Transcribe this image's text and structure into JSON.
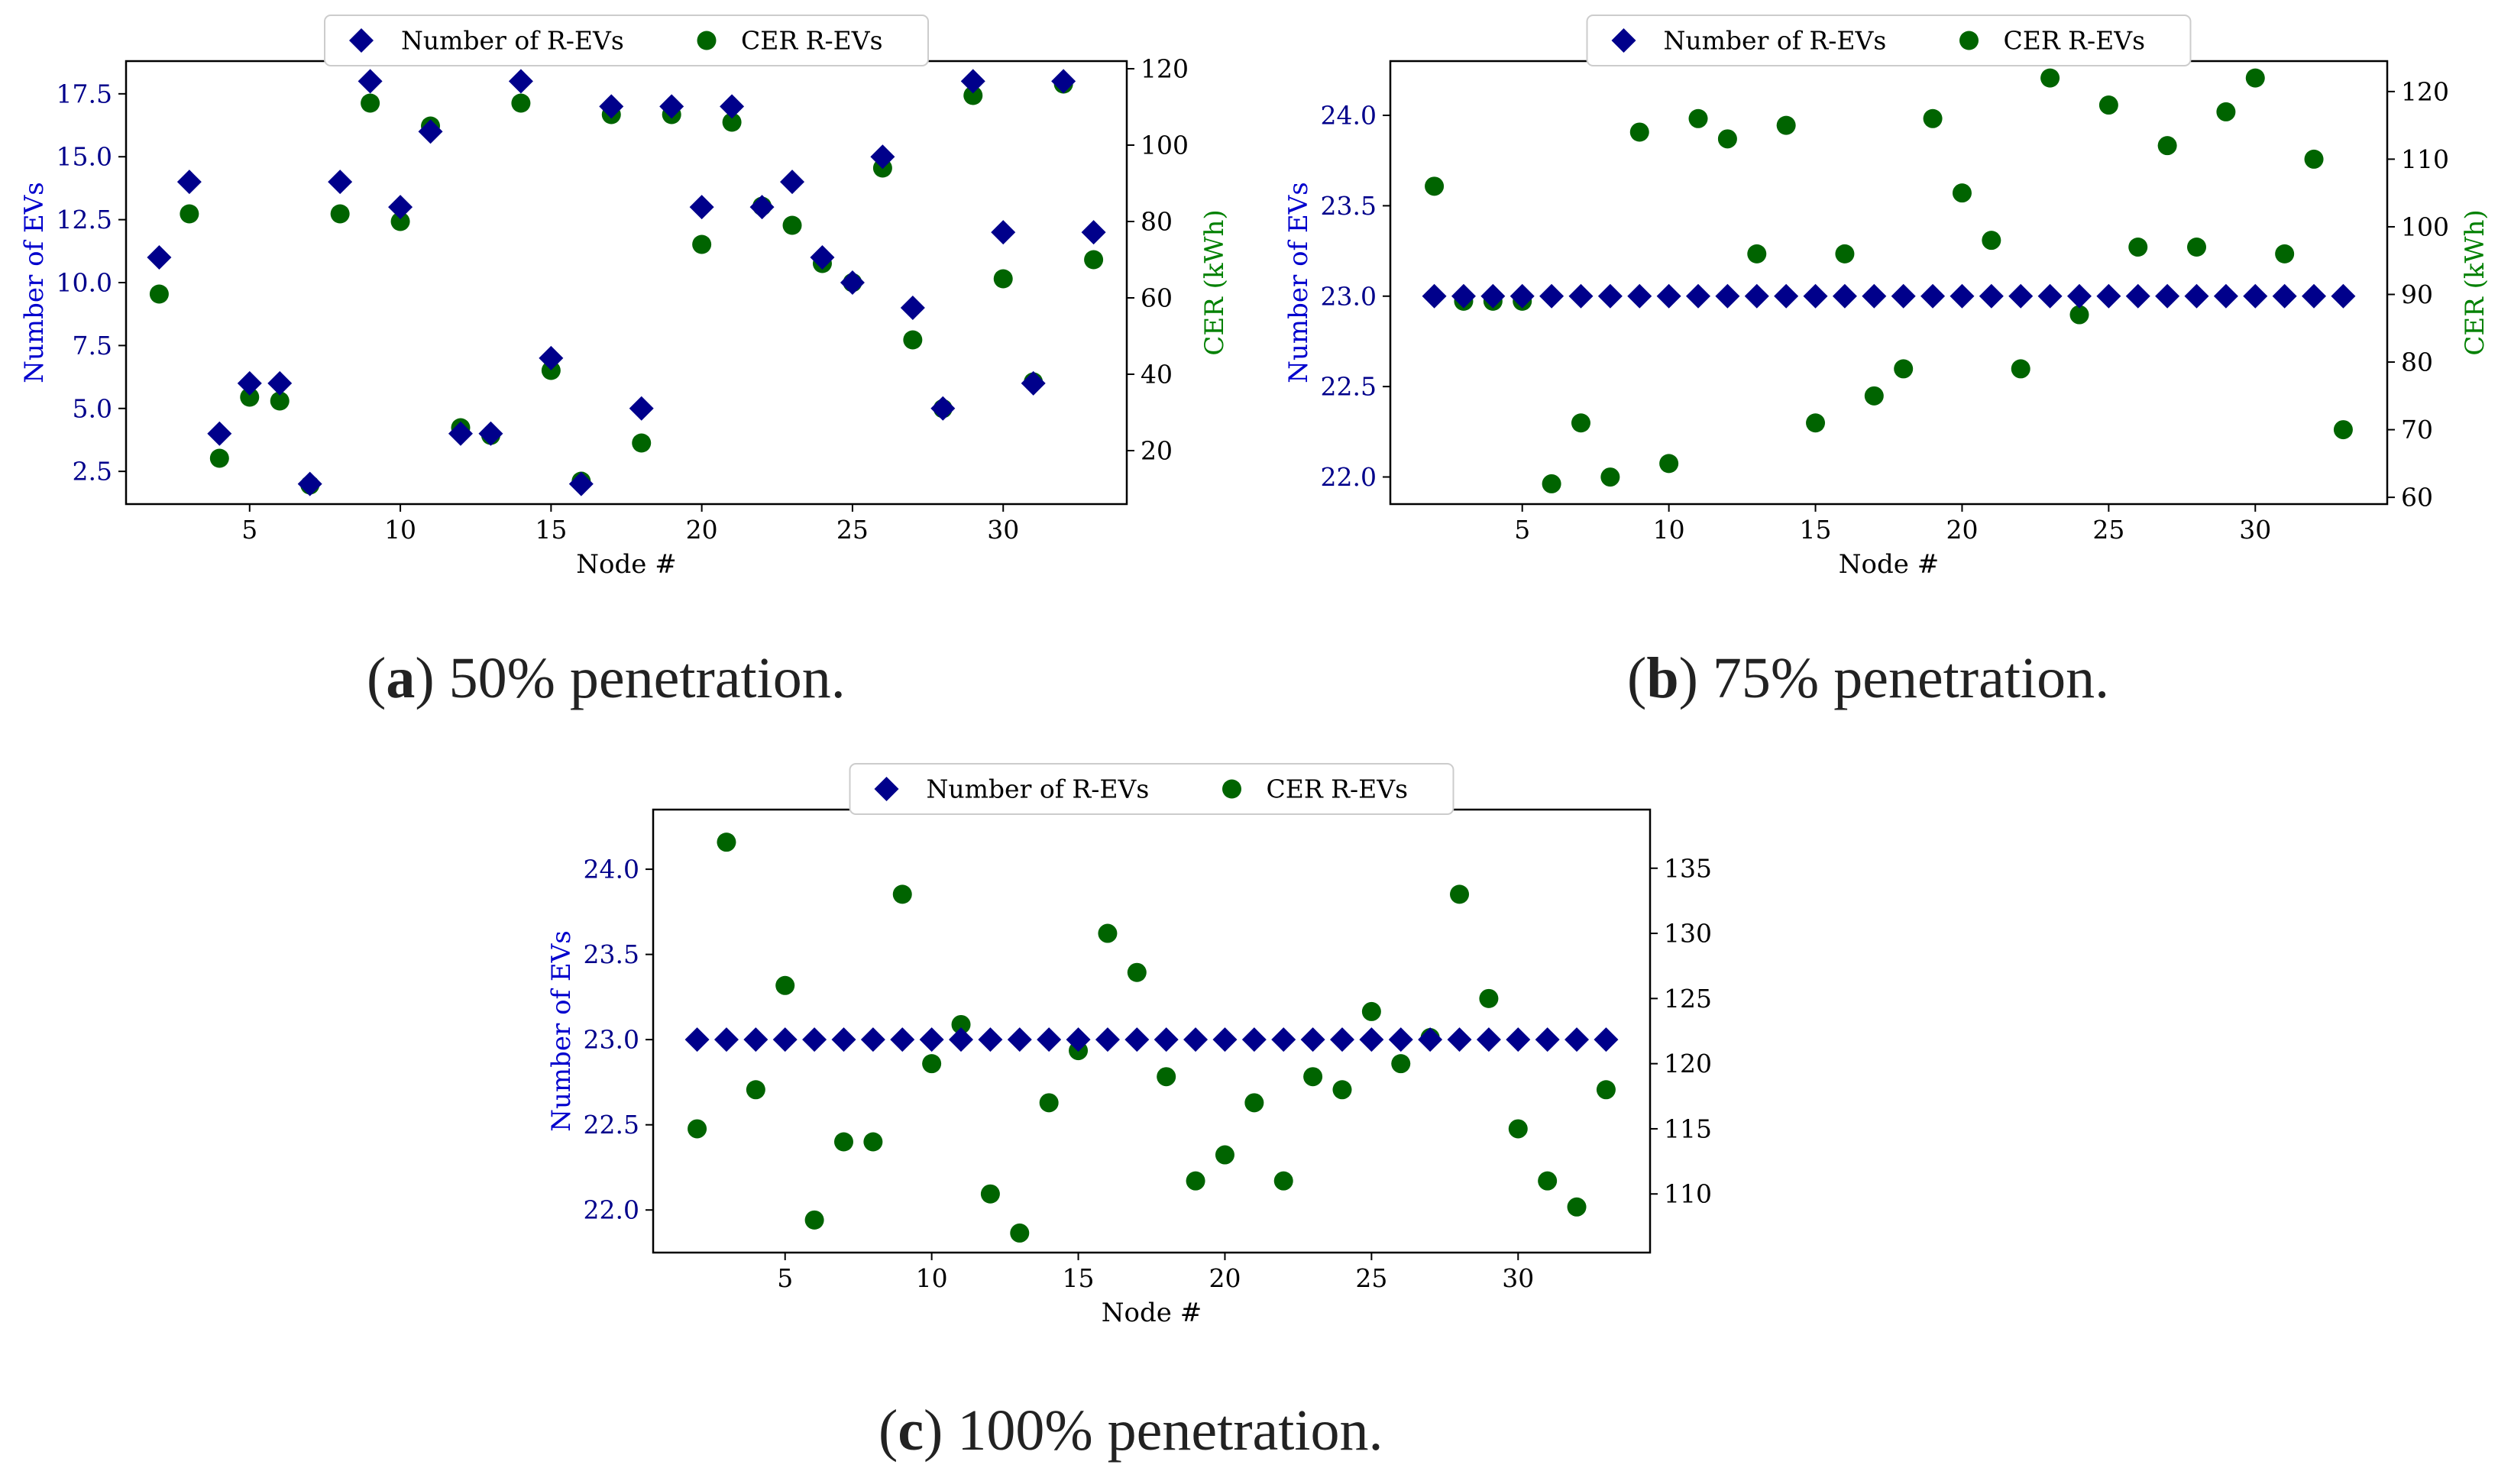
{
  "figure": {
    "captions": [
      {
        "letter": "a",
        "text": "50% penetration."
      },
      {
        "letter": "b",
        "text": "75% penetration."
      },
      {
        "letter": "c",
        "text": "100% penetration."
      }
    ]
  },
  "colors": {
    "evs_series": "#00008b",
    "cer_series": "#006400",
    "left_axis_label": "#0000cd",
    "right_axis_label": "#008000",
    "axis": "#000000"
  },
  "chart_data": [
    {
      "panel": "a",
      "type": "scatter",
      "xlabel": "Node #",
      "ylabel_left": "Number of EVs",
      "ylabel_right": "CER (kWh)",
      "legend": {
        "placement": "top-center",
        "entries": [
          "Number of R-EVs",
          "CER R-EVs"
        ]
      },
      "x": [
        2,
        3,
        4,
        5,
        6,
        7,
        8,
        9,
        10,
        11,
        12,
        13,
        14,
        15,
        16,
        17,
        18,
        19,
        20,
        21,
        22,
        23,
        24,
        25,
        26,
        27,
        28,
        29,
        30,
        31,
        32,
        33
      ],
      "series": [
        {
          "name": "Number of R-EVs",
          "axis": "left",
          "marker": "diamond",
          "values": [
            11,
            14,
            4,
            6,
            6,
            2,
            14,
            18,
            13,
            16,
            4,
            4,
            18,
            7,
            2,
            17,
            5,
            17,
            13,
            17,
            13,
            14,
            11,
            10,
            15,
            9,
            5,
            18,
            12,
            6,
            18,
            12
          ]
        },
        {
          "name": "CER R-EVs",
          "axis": "right",
          "marker": "circle",
          "values": [
            61,
            82,
            18,
            34,
            33,
            11,
            82,
            111,
            80,
            105,
            26,
            24,
            111,
            41,
            12,
            108,
            22,
            108,
            74,
            106,
            84,
            79,
            69,
            64,
            94,
            49,
            31,
            113,
            65,
            38,
            116,
            70
          ]
        }
      ],
      "x_ticks": [
        5,
        10,
        15,
        20,
        25,
        30
      ],
      "xlim": [
        0.9,
        34.1
      ],
      "y_left_ticks": [
        "2.5",
        "5.0",
        "7.5",
        "10.0",
        "12.5",
        "15.0",
        "17.5"
      ],
      "ylim_left": [
        1.2,
        18.8
      ],
      "y_right_ticks": [
        "20",
        "40",
        "60",
        "80",
        "100",
        "120"
      ],
      "ylim_right": [
        6,
        122
      ]
    },
    {
      "panel": "b",
      "type": "scatter",
      "xlabel": "Node #",
      "ylabel_left": "Number of EVs",
      "ylabel_right": "CER (kWh)",
      "legend": {
        "placement": "top-center",
        "entries": [
          "Number of R-EVs",
          "CER R-EVs"
        ]
      },
      "x": [
        2,
        3,
        4,
        5,
        6,
        7,
        8,
        9,
        10,
        11,
        12,
        13,
        14,
        15,
        16,
        17,
        18,
        19,
        20,
        21,
        22,
        23,
        24,
        25,
        26,
        27,
        28,
        29,
        30,
        31,
        32,
        33
      ],
      "series": [
        {
          "name": "Number of R-EVs",
          "axis": "left",
          "marker": "diamond",
          "values": [
            23,
            23,
            23,
            23,
            23,
            23,
            23,
            23,
            23,
            23,
            23,
            23,
            23,
            23,
            23,
            23,
            23,
            23,
            23,
            23,
            23,
            23,
            23,
            23,
            23,
            23,
            23,
            23,
            23,
            23,
            23,
            23
          ]
        },
        {
          "name": "CER R-EVs",
          "axis": "right",
          "marker": "circle",
          "values": [
            106,
            89,
            89,
            89,
            62,
            71,
            63,
            114,
            65,
            116,
            113,
            96,
            115,
            71,
            96,
            75,
            79,
            116,
            105,
            98,
            79,
            122,
            87,
            118,
            97,
            112,
            97,
            117,
            122,
            96,
            110,
            70
          ]
        }
      ],
      "x_ticks": [
        5,
        10,
        15,
        20,
        25,
        30
      ],
      "xlim": [
        0.5,
        34.5
      ],
      "y_left_ticks": [
        "22.0",
        "22.5",
        "23.0",
        "23.5",
        "24.0"
      ],
      "ylim_left": [
        21.85,
        24.3
      ],
      "y_right_ticks": [
        "60",
        "70",
        "80",
        "90",
        "100",
        "110",
        "120"
      ],
      "ylim_right": [
        59,
        124.5
      ]
    },
    {
      "panel": "c",
      "type": "scatter",
      "xlabel": "Node #",
      "ylabel_left": "Number of EVs",
      "ylabel_right": "",
      "legend": {
        "placement": "top-center",
        "entries": [
          "Number of R-EVs",
          "CER R-EVs"
        ]
      },
      "x": [
        2,
        3,
        4,
        5,
        6,
        7,
        8,
        9,
        10,
        11,
        12,
        13,
        14,
        15,
        16,
        17,
        18,
        19,
        20,
        21,
        22,
        23,
        24,
        25,
        26,
        27,
        28,
        29,
        30,
        31,
        32,
        33
      ],
      "series": [
        {
          "name": "Number of R-EVs",
          "axis": "left",
          "marker": "diamond",
          "values": [
            23,
            23,
            23,
            23,
            23,
            23,
            23,
            23,
            23,
            23,
            23,
            23,
            23,
            23,
            23,
            23,
            23,
            23,
            23,
            23,
            23,
            23,
            23,
            23,
            23,
            23,
            23,
            23,
            23,
            23,
            23,
            23
          ]
        },
        {
          "name": "CER R-EVs",
          "axis": "right",
          "marker": "circle",
          "values": [
            115,
            137,
            118,
            126,
            108,
            114,
            114,
            133,
            120,
            123,
            110,
            107,
            117,
            121,
            130,
            127,
            119,
            111,
            113,
            117,
            111,
            119,
            118,
            124,
            120,
            122,
            133,
            125,
            115,
            111,
            109,
            118
          ]
        }
      ],
      "x_ticks": [
        5,
        10,
        15,
        20,
        25,
        30
      ],
      "xlim": [
        0.5,
        34.5
      ],
      "y_left_ticks": [
        "22.0",
        "22.5",
        "23.0",
        "23.5",
        "24.0"
      ],
      "ylim_left": [
        21.75,
        24.35
      ],
      "y_right_ticks": [
        "110",
        "115",
        "120",
        "125",
        "130",
        "135"
      ],
      "ylim_right": [
        105.5,
        139.5
      ]
    }
  ]
}
